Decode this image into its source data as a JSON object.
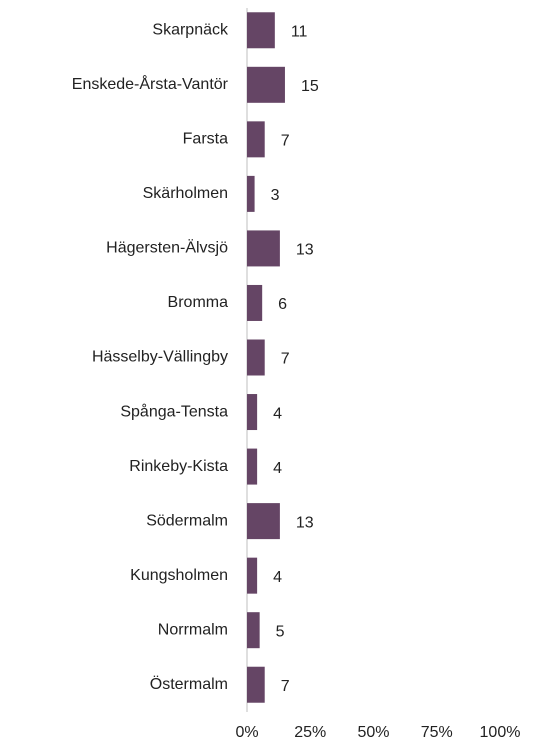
{
  "chart_data": {
    "type": "bar",
    "orientation": "horizontal",
    "categories": [
      "Skarpnäck",
      "Enskede-Årsta-Vantör",
      "Farsta",
      "Skärholmen",
      "Hägersten-Älvsjö",
      "Bromma",
      "Hässelby-Vällingby",
      "Spånga-Tensta",
      "Rinkeby-Kista",
      "Södermalm",
      "Kungsholmen",
      "Norrmalm",
      "Östermalm"
    ],
    "values": [
      11,
      15,
      7,
      3,
      13,
      6,
      7,
      4,
      4,
      13,
      4,
      5,
      7
    ],
    "color": "#654565",
    "xlim": [
      0,
      100
    ],
    "xticks": [
      {
        "value": 0,
        "label": "0%"
      },
      {
        "value": 25,
        "label": "25%"
      },
      {
        "value": 50,
        "label": "50%"
      },
      {
        "value": 75,
        "label": "75%"
      },
      {
        "value": 100,
        "label": "100%"
      }
    ]
  }
}
